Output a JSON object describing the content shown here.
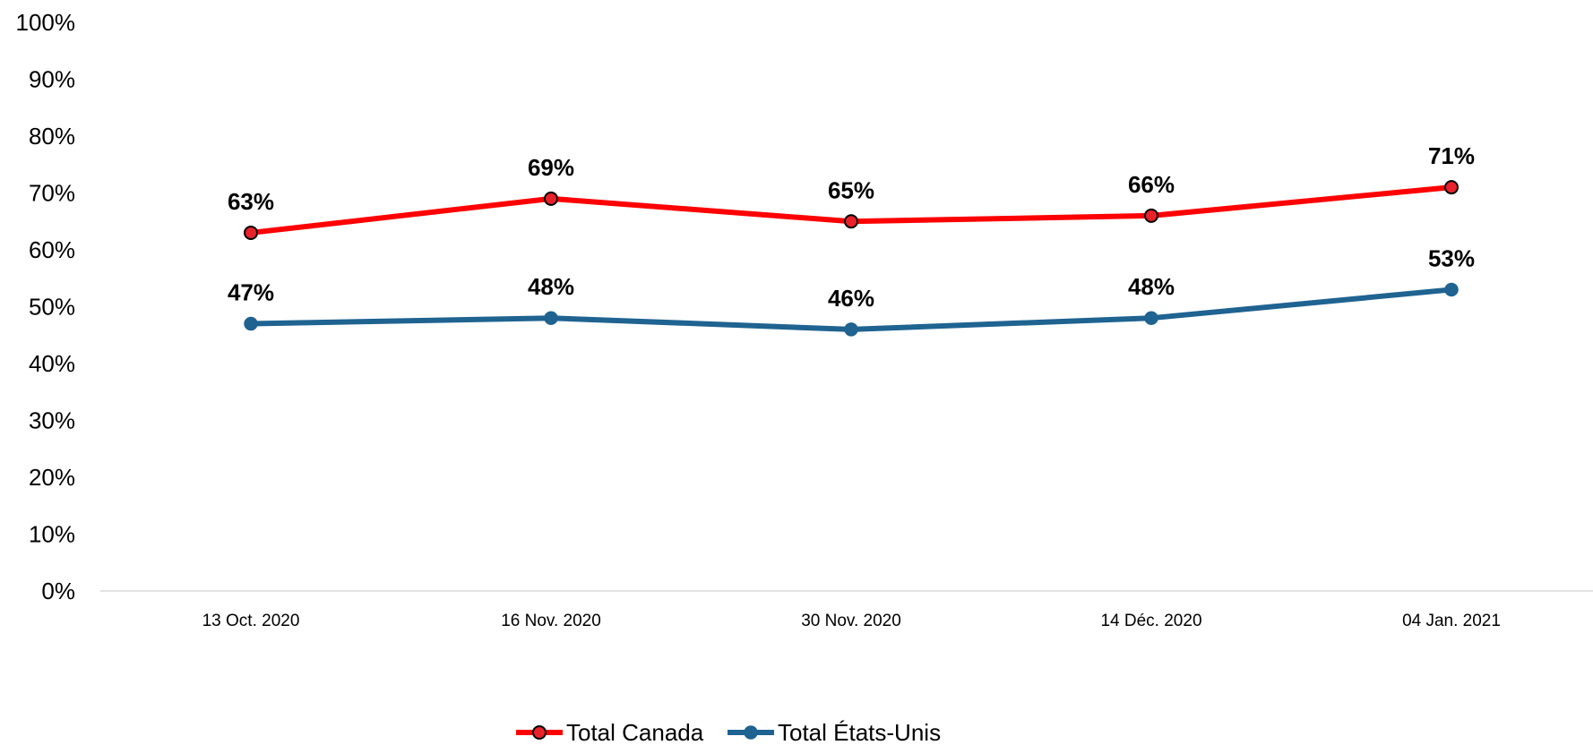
{
  "chart_data": {
    "type": "line",
    "title": "",
    "xlabel": "",
    "ylabel": "",
    "categories": [
      "13 Oct. 2020",
      "16 Nov. 2020",
      "30 Nov. 2020",
      "14 Déc. 2020",
      "04 Jan. 2021"
    ],
    "y_ticks": [
      "0%",
      "10%",
      "20%",
      "30%",
      "40%",
      "50%",
      "60%",
      "70%",
      "80%",
      "90%",
      "100%"
    ],
    "ylim": [
      0,
      100
    ],
    "grid": false,
    "legend_position": "bottom",
    "series": [
      {
        "name": "Total Canada",
        "values": [
          63,
          69,
          65,
          66,
          71
        ],
        "labels": [
          "63%",
          "69%",
          "65%",
          "66%",
          "71%"
        ],
        "color": "#ff0000",
        "marker_fill": "#e8212a"
      },
      {
        "name": "Total États-Unis",
        "values": [
          47,
          48,
          46,
          48,
          53
        ],
        "labels": [
          "47%",
          "48%",
          "46%",
          "48%",
          "53%"
        ],
        "color": "#1f6391",
        "marker_fill": "#1f6391"
      }
    ]
  }
}
